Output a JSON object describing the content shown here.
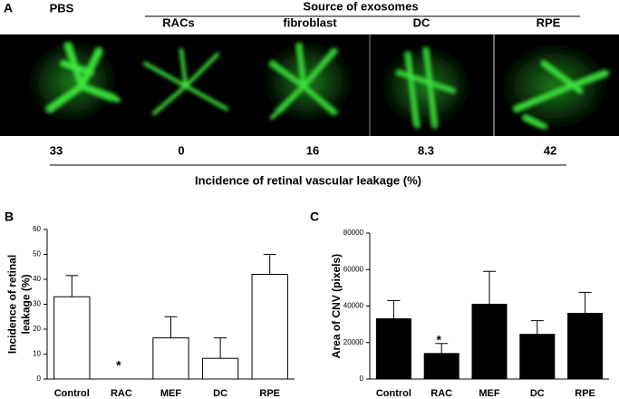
{
  "panel_a": {
    "label": "A",
    "group_title": "Source of exosomes",
    "columns": [
      "PBS",
      "RACs",
      "fibroblast",
      "DC",
      "RPE"
    ],
    "values": [
      33,
      0,
      16,
      8.3,
      42
    ],
    "caption": "Incidence of  retinal vascular leakage (%)"
  },
  "chart_data": [
    {
      "type": "bar",
      "panel_label": "B",
      "ylabel": [
        "Incidence of retinal",
        "leakage (%)"
      ],
      "categories": [
        "Control",
        "RAC",
        "MEF",
        "DC",
        "RPE"
      ],
      "values": [
        33,
        0,
        16.5,
        8.3,
        42
      ],
      "errors": [
        8.5,
        null,
        8.5,
        8.2,
        8
      ],
      "annotations": [
        null,
        "*",
        null,
        null,
        null
      ],
      "color": "#ffffff",
      "ylim": [
        0,
        60
      ],
      "yticks": [
        0,
        10,
        20,
        30,
        40,
        50,
        60
      ]
    },
    {
      "type": "bar",
      "panel_label": "C",
      "ylabel": [
        "Area of CNV (pixels)"
      ],
      "categories": [
        "Control",
        "RAC",
        "MEF",
        "DC",
        "RPE"
      ],
      "values": [
        33000,
        14000,
        41000,
        24500,
        36000
      ],
      "errors": [
        10000,
        5500,
        18000,
        7500,
        11500
      ],
      "annotations": [
        null,
        "*",
        null,
        null,
        null
      ],
      "color": "#000000",
      "ylim": [
        0,
        80000
      ],
      "yticks": [
        0,
        20000,
        40000,
        60000,
        80000
      ]
    }
  ]
}
